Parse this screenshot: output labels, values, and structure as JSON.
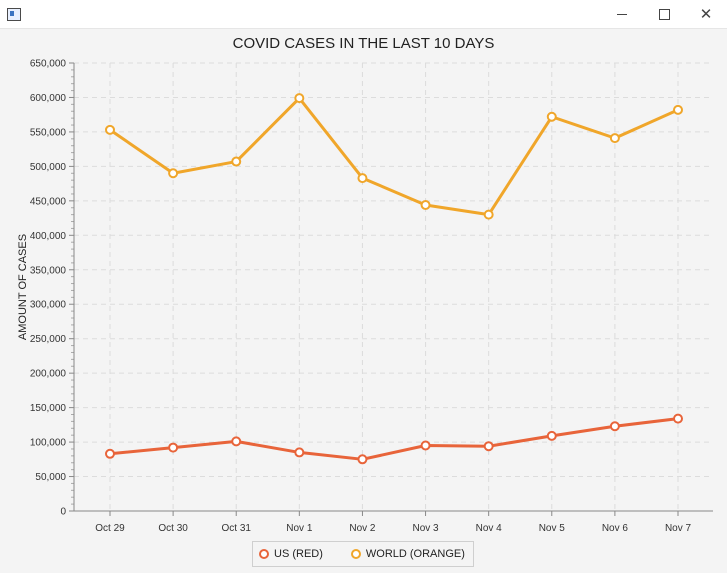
{
  "window": {
    "min_icon": "minimize-icon",
    "max_icon": "maximize-icon",
    "close_icon": "close-icon",
    "close_glyph": "✕"
  },
  "chart_data": {
    "type": "line",
    "title": "COVID CASES IN THE LAST 10 DAYS",
    "xlabel": "",
    "ylabel": "AMOUNT OF CASES",
    "categories": [
      "Oct 29",
      "Oct 30",
      "Oct 31",
      "Nov 1",
      "Nov 2",
      "Nov 3",
      "Nov 4",
      "Nov 5",
      "Nov 6",
      "Nov 7"
    ],
    "ylim": [
      0,
      650000
    ],
    "yticks": [
      "0",
      "50,000",
      "100,000",
      "150,000",
      "200,000",
      "250,000",
      "300,000",
      "350,000",
      "400,000",
      "450,000",
      "500,000",
      "550,000",
      "600,000",
      "650,000"
    ],
    "grid": true,
    "legend_position": "bottom",
    "series": [
      {
        "name": "US (RED)",
        "color": "#e8643a",
        "values": [
          83000,
          92000,
          101000,
          85000,
          75000,
          95000,
          94000,
          109000,
          123000,
          134000
        ]
      },
      {
        "name": "WORLD (ORANGE)",
        "color": "#f0a62a",
        "values": [
          553000,
          490000,
          507000,
          599000,
          483000,
          444000,
          430000,
          572000,
          541000,
          582000
        ]
      }
    ]
  }
}
